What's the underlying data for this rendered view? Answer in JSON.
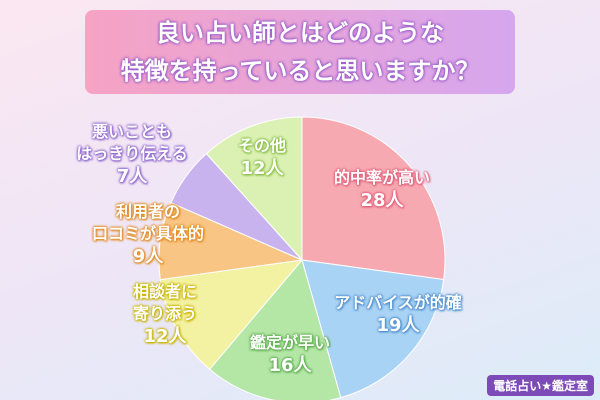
{
  "chart_data": {
    "type": "pie",
    "title": "良い占い師とはどのような\n特徴を持っていると思いますか？",
    "categories": [
      "的中率が高い",
      "アドバイスが的確",
      "鑑定が早い",
      "相談者に\n寄り添う",
      "利用者の\n口コミが具体的",
      "悪いことも\nはっきり伝える",
      "その他"
    ],
    "values": [
      28,
      19,
      16,
      12,
      9,
      7,
      12
    ],
    "value_labels": [
      "28人",
      "19人",
      "16人",
      "12人",
      "9人",
      "7人",
      "12人"
    ],
    "colors": [
      "#f7a9b2",
      "#a9d3f4",
      "#b4e6a6",
      "#f3f1a2",
      "#f8c584",
      "#c9b3ef",
      "#daf1b3"
    ],
    "logo": "電話占い★鑑定室"
  }
}
